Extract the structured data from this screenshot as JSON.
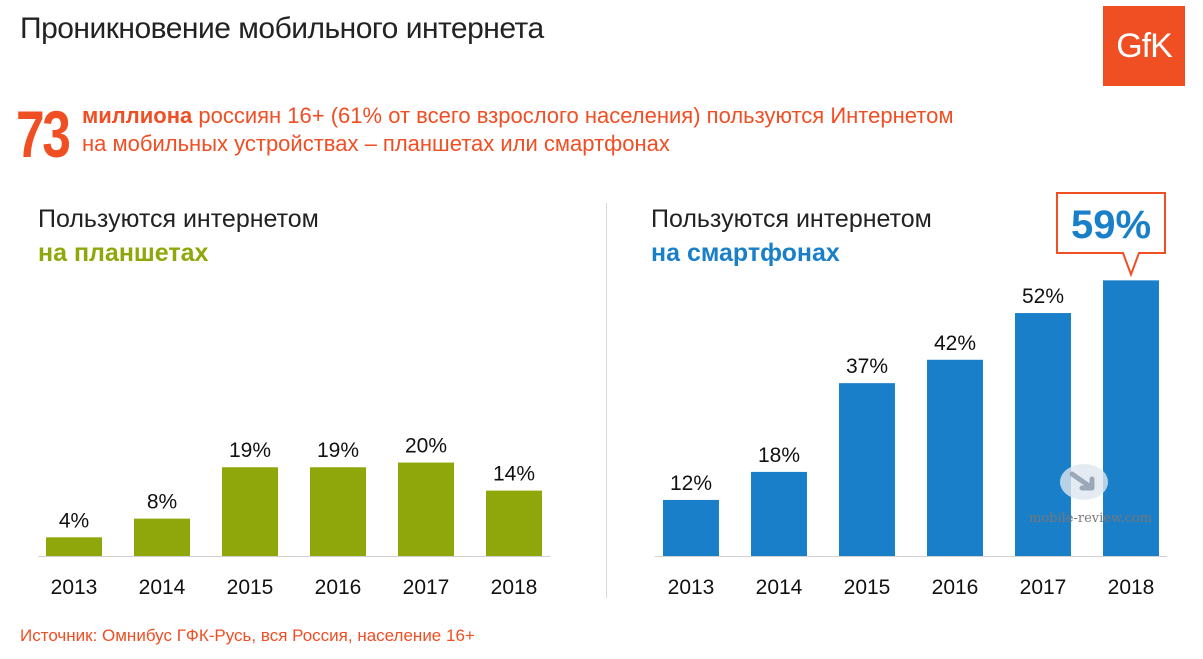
{
  "header": {
    "title": "Проникновение мобильного интернета",
    "logo_text": "GfK"
  },
  "headline": {
    "number": "73",
    "bold": "миллиона",
    "line1_rest": " россиян 16+ (61% от всего взрослого населения) пользуются Интернетом",
    "line2": "на мобильных устройствах – планшетах или смартфонах"
  },
  "colors": {
    "accent": "#f04e23",
    "tablet": "#8fa70a",
    "smartphone": "#1a7fc9"
  },
  "chart_data": [
    {
      "type": "bar",
      "title": "Пользуются интернетом",
      "subtitle": "на планшетах",
      "categories": [
        "2013",
        "2014",
        "2015",
        "2016",
        "2017",
        "2018"
      ],
      "values": [
        4,
        8,
        19,
        19,
        20,
        14
      ],
      "labels": [
        "4%",
        "8%",
        "19%",
        "19%",
        "20%",
        "14%"
      ],
      "unit": "%",
      "color": "#8fa70a",
      "ylim": [
        0,
        64
      ],
      "grid": false
    },
    {
      "type": "bar",
      "title": "Пользуются интернетом",
      "subtitle": "на смартфонах",
      "categories": [
        "2013",
        "2014",
        "2015",
        "2016",
        "2017",
        "2018"
      ],
      "values": [
        12,
        18,
        37,
        42,
        52,
        59
      ],
      "labels": [
        "12%",
        "18%",
        "37%",
        "42%",
        "52%",
        ""
      ],
      "unit": "%",
      "color": "#1a7fc9",
      "ylim": [
        0,
        64
      ],
      "grid": false,
      "callout": "59%"
    }
  ],
  "source": "Источник: Омнибус ГФК-Русь, вся Россия, население 16+",
  "watermark": "mobile-review.com"
}
